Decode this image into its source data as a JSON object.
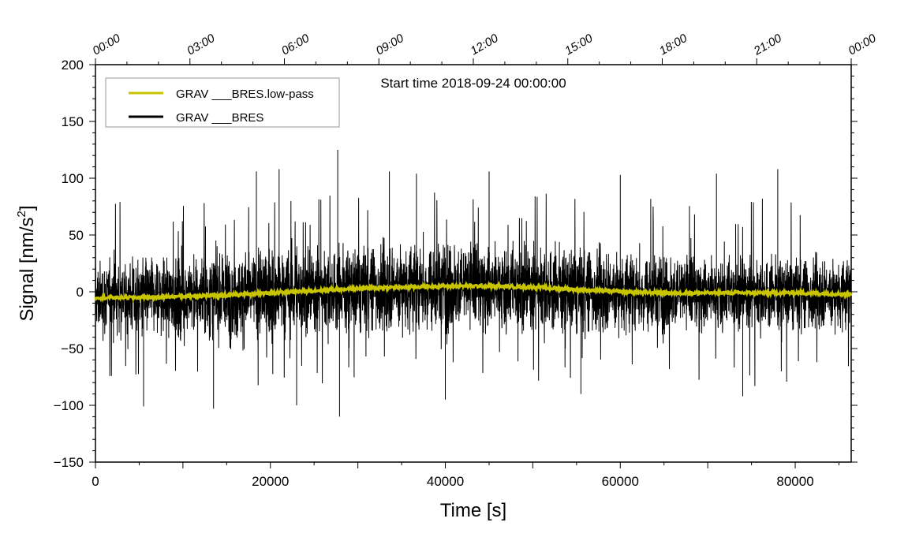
{
  "chart_data": {
    "type": "line",
    "title": "",
    "annotation": "Start time 2018-09-24 00:00:00",
    "xlabel": "Time [s]",
    "ylabel_main": "Signal [nm/s",
    "ylabel_sup": "2",
    "ylabel_end": "]",
    "xlim": [
      0,
      86400
    ],
    "ylim": [
      -150,
      200
    ],
    "x_ticks": [
      0,
      20000,
      40000,
      60000,
      80000
    ],
    "x_tick_labels": [
      "0",
      "20000",
      "40000",
      "60000",
      "80000"
    ],
    "y_ticks": [
      -150,
      -100,
      -50,
      0,
      50,
      100,
      150,
      200
    ],
    "y_tick_labels": [
      "−150",
      "−100",
      "−50",
      "0",
      "50",
      "100",
      "150",
      "200"
    ],
    "top_axis": {
      "ticks": [
        0,
        10800,
        21600,
        32400,
        43200,
        54000,
        64800,
        75600,
        86400
      ],
      "labels": [
        "00:00",
        "03:00",
        "06:00",
        "09:00",
        "12:00",
        "15:00",
        "18:00",
        "21:00",
        "00:00"
      ]
    },
    "grid": false,
    "legend_position": "top-left",
    "series": [
      {
        "name": "GRAV ___BRES.low-pass",
        "color": "#c8c400",
        "kind": "smoothed",
        "trend": {
          "x": [
            0,
            5000,
            10000,
            15000,
            20000,
            25000,
            30000,
            35000,
            40000,
            45000,
            50000,
            55000,
            60000,
            65000,
            70000,
            75000,
            80000,
            86400
          ],
          "y": [
            -5,
            -5,
            -4,
            -3,
            -1,
            1,
            3,
            4,
            5,
            5,
            4,
            2,
            0,
            -1,
            -1,
            -1,
            -1,
            -2
          ]
        },
        "noise_amplitude": 1.5
      },
      {
        "name": "GRAV ___BRES",
        "color": "#000000",
        "kind": "raw",
        "envelope_x": [
          0,
          10000,
          20000,
          30000,
          40000,
          50000,
          60000,
          70000,
          80000,
          86400
        ],
        "envelope_sigma": [
          15,
          17,
          19,
          18,
          19,
          19,
          17,
          16,
          15,
          15
        ],
        "peaks": [
          {
            "x": 27700,
            "y": 125
          },
          {
            "x": 27900,
            "y": -110
          },
          {
            "x": 21000,
            "y": 108
          },
          {
            "x": 18400,
            "y": 106
          },
          {
            "x": 36700,
            "y": 104
          },
          {
            "x": 33600,
            "y": 106
          },
          {
            "x": 5500,
            "y": -101
          },
          {
            "x": 13500,
            "y": -103
          },
          {
            "x": 23000,
            "y": -100
          },
          {
            "x": 40000,
            "y": -95
          },
          {
            "x": 55500,
            "y": -90
          },
          {
            "x": 74000,
            "y": -92
          },
          {
            "x": 45000,
            "y": 106
          },
          {
            "x": 60000,
            "y": 103
          },
          {
            "x": 71000,
            "y": 104
          },
          {
            "x": 78000,
            "y": 108
          }
        ]
      }
    ]
  }
}
